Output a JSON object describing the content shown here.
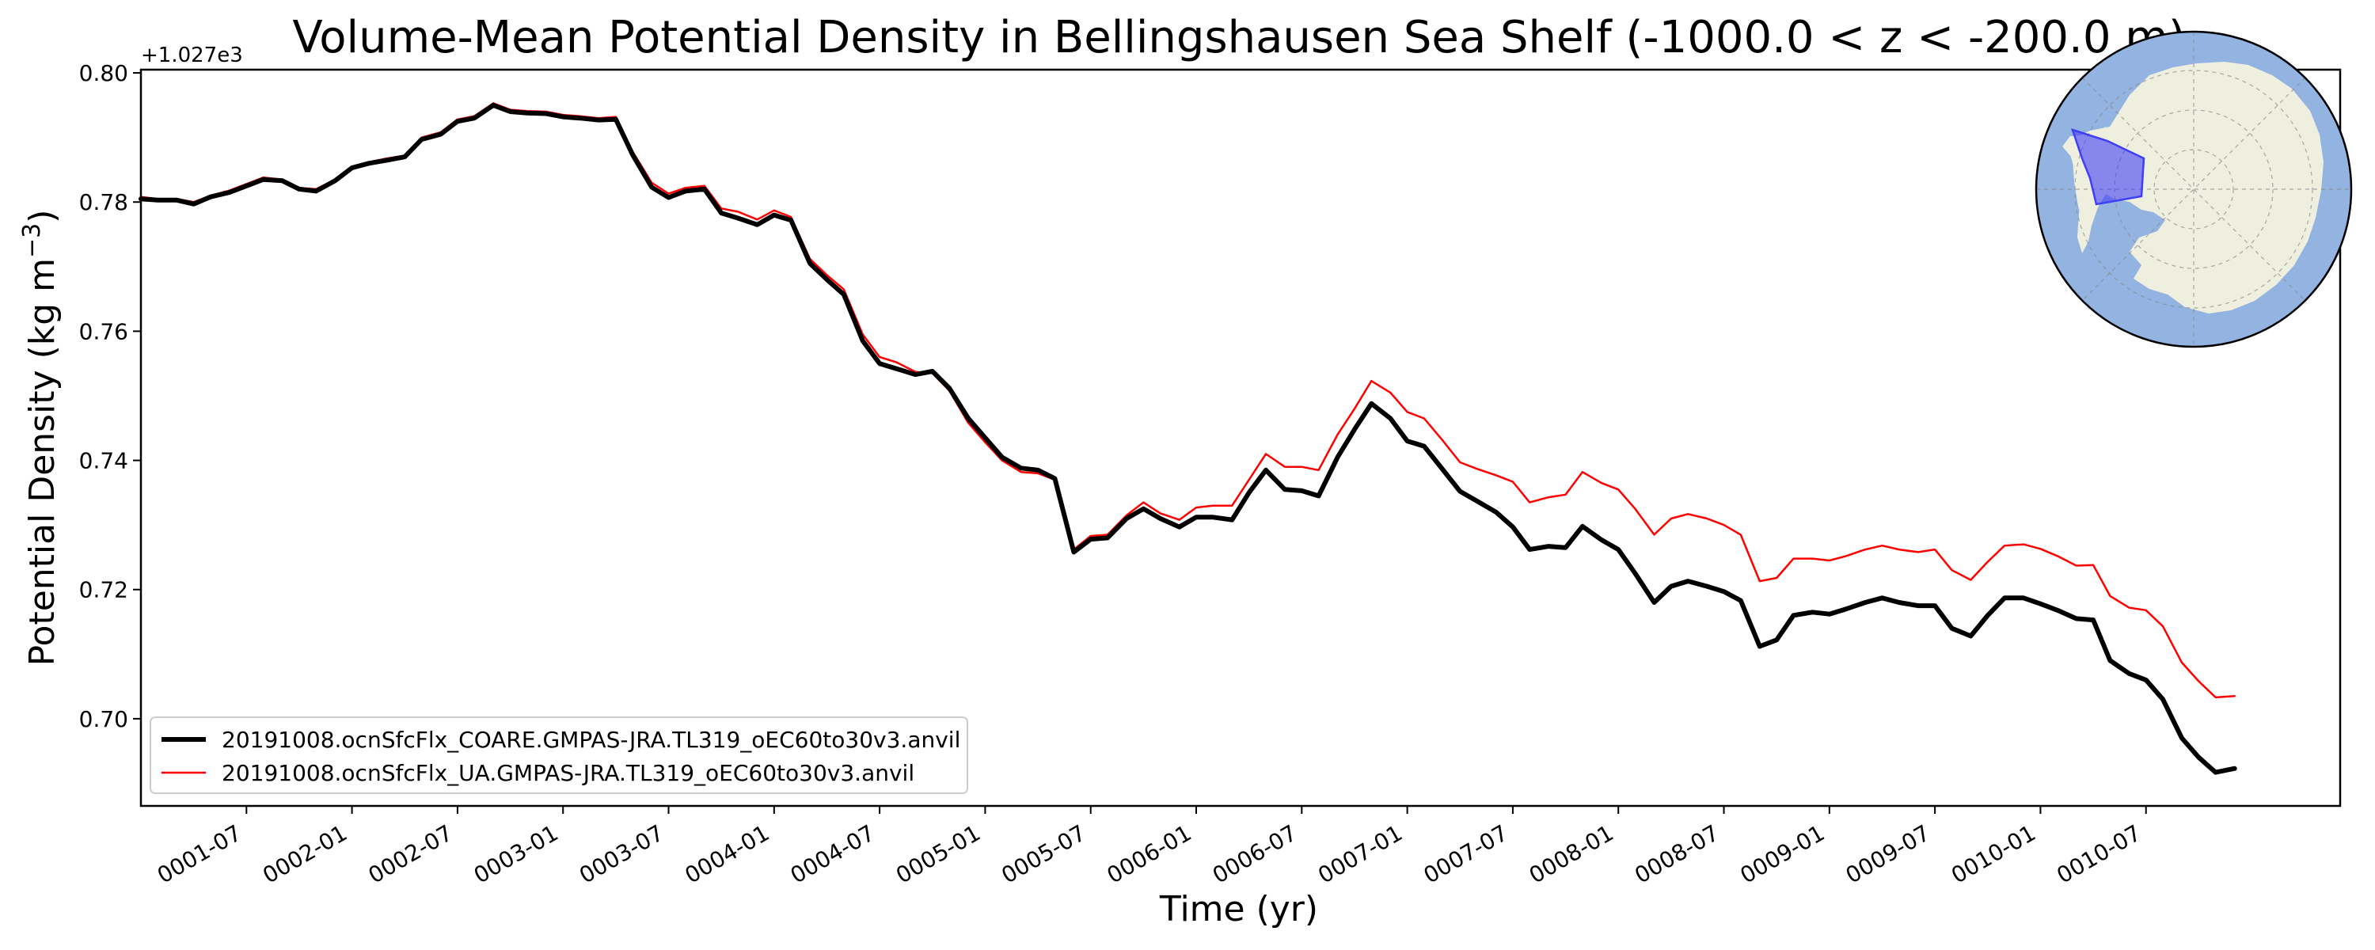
{
  "chart_data": {
    "type": "line",
    "title": "Volume-Mean Potential Density in Bellingshausen Sea Shelf (-1000.0 < z < -200.0 m)",
    "xlabel": "Time (yr)",
    "ylabel": "Potential Density (kg m",
    "ylabel_superscript": "−3",
    "ylabel_close": ")",
    "y_offset_label": "+1.027e3",
    "xlim": [
      0,
      10.42
    ],
    "ylim": [
      0.6865,
      0.8005
    ],
    "x_ticks": [
      {
        "label": "0001-07",
        "x": 0.5
      },
      {
        "label": "0002-01",
        "x": 1.0
      },
      {
        "label": "0002-07",
        "x": 1.5
      },
      {
        "label": "0003-01",
        "x": 2.0
      },
      {
        "label": "0003-07",
        "x": 2.5
      },
      {
        "label": "0004-01",
        "x": 3.0
      },
      {
        "label": "0004-07",
        "x": 3.5
      },
      {
        "label": "0005-01",
        "x": 4.0
      },
      {
        "label": "0005-07",
        "x": 4.5
      },
      {
        "label": "0006-01",
        "x": 5.0
      },
      {
        "label": "0006-07",
        "x": 5.5
      },
      {
        "label": "0007-01",
        "x": 6.0
      },
      {
        "label": "0007-07",
        "x": 6.5
      },
      {
        "label": "0008-01",
        "x": 7.0
      },
      {
        "label": "0008-07",
        "x": 7.5
      },
      {
        "label": "0009-01",
        "x": 8.0
      },
      {
        "label": "0009-07",
        "x": 8.5
      },
      {
        "label": "0010-01",
        "x": 9.0
      },
      {
        "label": "0010-07",
        "x": 9.5
      }
    ],
    "y_ticks": [
      {
        "label": "0.70",
        "y": 0.7
      },
      {
        "label": "0.72",
        "y": 0.72
      },
      {
        "label": "0.74",
        "y": 0.74
      },
      {
        "label": "0.76",
        "y": 0.76
      },
      {
        "label": "0.78",
        "y": 0.78
      },
      {
        "label": "0.80",
        "y": 0.8
      }
    ],
    "legend_position": "lower-left",
    "series": [
      {
        "name": "20191008.ocnSfcFlx_COARE.GMPAS-JRA.TL319_oEC60to30v3.anvil",
        "color": "#000000",
        "linewidth": "thick",
        "points": [
          [
            0.0,
            0.7805
          ],
          [
            0.08,
            0.7803
          ],
          [
            0.17,
            0.7803
          ],
          [
            0.25,
            0.7797
          ],
          [
            0.33,
            0.7808
          ],
          [
            0.42,
            0.7815
          ],
          [
            0.5,
            0.7825
          ],
          [
            0.58,
            0.7835
          ],
          [
            0.67,
            0.7833
          ],
          [
            0.75,
            0.782
          ],
          [
            0.83,
            0.7817
          ],
          [
            0.92,
            0.7833
          ],
          [
            1.0,
            0.7853
          ],
          [
            1.08,
            0.786
          ],
          [
            1.17,
            0.7865
          ],
          [
            1.25,
            0.787
          ],
          [
            1.33,
            0.7897
          ],
          [
            1.42,
            0.7905
          ],
          [
            1.5,
            0.7925
          ],
          [
            1.58,
            0.793
          ],
          [
            1.67,
            0.795
          ],
          [
            1.75,
            0.794
          ],
          [
            1.83,
            0.7938
          ],
          [
            1.92,
            0.7937
          ],
          [
            2.0,
            0.7932
          ],
          [
            2.08,
            0.793
          ],
          [
            2.17,
            0.7927
          ],
          [
            2.25,
            0.7928
          ],
          [
            2.33,
            0.7873
          ],
          [
            2.42,
            0.7823
          ],
          [
            2.5,
            0.7807
          ],
          [
            2.58,
            0.7817
          ],
          [
            2.67,
            0.782
          ],
          [
            2.75,
            0.7783
          ],
          [
            2.83,
            0.7775
          ],
          [
            2.92,
            0.7765
          ],
          [
            3.0,
            0.778
          ],
          [
            3.08,
            0.7772
          ],
          [
            3.17,
            0.7705
          ],
          [
            3.25,
            0.768
          ],
          [
            3.33,
            0.7657
          ],
          [
            3.42,
            0.7585
          ],
          [
            3.5,
            0.755
          ],
          [
            3.58,
            0.7542
          ],
          [
            3.67,
            0.7533
          ],
          [
            3.75,
            0.7538
          ],
          [
            3.83,
            0.7512
          ],
          [
            3.92,
            0.7465
          ],
          [
            4.0,
            0.7435
          ],
          [
            4.08,
            0.7405
          ],
          [
            4.17,
            0.7388
          ],
          [
            4.25,
            0.7385
          ],
          [
            4.33,
            0.7372
          ],
          [
            4.42,
            0.7258
          ],
          [
            4.5,
            0.7278
          ],
          [
            4.58,
            0.728
          ],
          [
            4.67,
            0.731
          ],
          [
            4.75,
            0.7325
          ],
          [
            4.83,
            0.731
          ],
          [
            4.92,
            0.7297
          ],
          [
            5.0,
            0.7312
          ],
          [
            5.08,
            0.7312
          ],
          [
            5.17,
            0.7308
          ],
          [
            5.25,
            0.735
          ],
          [
            5.33,
            0.7385
          ],
          [
            5.42,
            0.7355
          ],
          [
            5.5,
            0.7353
          ],
          [
            5.58,
            0.7345
          ],
          [
            5.67,
            0.7405
          ],
          [
            5.75,
            0.7448
          ],
          [
            5.83,
            0.7488
          ],
          [
            5.92,
            0.7465
          ],
          [
            6.0,
            0.743
          ],
          [
            6.08,
            0.7422
          ],
          [
            6.17,
            0.7385
          ],
          [
            6.25,
            0.7352
          ],
          [
            6.33,
            0.7337
          ],
          [
            6.42,
            0.732
          ],
          [
            6.5,
            0.7297
          ],
          [
            6.58,
            0.7262
          ],
          [
            6.67,
            0.7267
          ],
          [
            6.75,
            0.7265
          ],
          [
            6.83,
            0.7298
          ],
          [
            6.92,
            0.7277
          ],
          [
            7.0,
            0.7262
          ],
          [
            7.08,
            0.7225
          ],
          [
            7.17,
            0.718
          ],
          [
            7.25,
            0.7205
          ],
          [
            7.33,
            0.7213
          ],
          [
            7.42,
            0.7205
          ],
          [
            7.5,
            0.7197
          ],
          [
            7.58,
            0.7183
          ],
          [
            7.67,
            0.7112
          ],
          [
            7.75,
            0.7122
          ],
          [
            7.83,
            0.716
          ],
          [
            7.92,
            0.7165
          ],
          [
            8.0,
            0.7162
          ],
          [
            8.08,
            0.717
          ],
          [
            8.17,
            0.718
          ],
          [
            8.25,
            0.7187
          ],
          [
            8.33,
            0.718
          ],
          [
            8.42,
            0.7175
          ],
          [
            8.5,
            0.7175
          ],
          [
            8.58,
            0.714
          ],
          [
            8.67,
            0.7128
          ],
          [
            8.75,
            0.716
          ],
          [
            8.83,
            0.7187
          ],
          [
            8.92,
            0.7187
          ],
          [
            9.0,
            0.7178
          ],
          [
            9.08,
            0.7168
          ],
          [
            9.17,
            0.7155
          ],
          [
            9.25,
            0.7153
          ],
          [
            9.33,
            0.709
          ],
          [
            9.42,
            0.707
          ],
          [
            9.5,
            0.706
          ],
          [
            9.58,
            0.703
          ],
          [
            9.67,
            0.697
          ],
          [
            9.75,
            0.694
          ],
          [
            9.83,
            0.6917
          ],
          [
            9.92,
            0.6923
          ]
        ]
      },
      {
        "name": "20191008.ocnSfcFlx_UA.GMPAS-JRA.TL319_oEC60to30v3.anvil",
        "color": "#ff0000",
        "linewidth": "thin",
        "points": [
          [
            0.0,
            0.7808
          ],
          [
            0.08,
            0.7805
          ],
          [
            0.17,
            0.7805
          ],
          [
            0.25,
            0.78
          ],
          [
            0.33,
            0.781
          ],
          [
            0.42,
            0.7818
          ],
          [
            0.5,
            0.7828
          ],
          [
            0.58,
            0.7838
          ],
          [
            0.67,
            0.7835
          ],
          [
            0.75,
            0.7822
          ],
          [
            0.83,
            0.782
          ],
          [
            0.92,
            0.7835
          ],
          [
            1.0,
            0.7855
          ],
          [
            1.08,
            0.7862
          ],
          [
            1.17,
            0.7868
          ],
          [
            1.25,
            0.7872
          ],
          [
            1.33,
            0.79
          ],
          [
            1.42,
            0.7908
          ],
          [
            1.5,
            0.7928
          ],
          [
            1.58,
            0.7933
          ],
          [
            1.67,
            0.7953
          ],
          [
            1.75,
            0.7943
          ],
          [
            1.83,
            0.7941
          ],
          [
            1.92,
            0.794
          ],
          [
            2.0,
            0.7935
          ],
          [
            2.08,
            0.7933
          ],
          [
            2.17,
            0.793
          ],
          [
            2.25,
            0.7932
          ],
          [
            2.33,
            0.7878
          ],
          [
            2.42,
            0.783
          ],
          [
            2.5,
            0.7813
          ],
          [
            2.58,
            0.7822
          ],
          [
            2.67,
            0.7825
          ],
          [
            2.75,
            0.779
          ],
          [
            2.83,
            0.7785
          ],
          [
            2.92,
            0.7773
          ],
          [
            3.0,
            0.7787
          ],
          [
            3.08,
            0.7777
          ],
          [
            3.17,
            0.7712
          ],
          [
            3.25,
            0.7687
          ],
          [
            3.33,
            0.7665
          ],
          [
            3.42,
            0.7595
          ],
          [
            3.5,
            0.756
          ],
          [
            3.58,
            0.7552
          ],
          [
            3.67,
            0.7537
          ],
          [
            3.75,
            0.7535
          ],
          [
            3.83,
            0.7508
          ],
          [
            3.92,
            0.7458
          ],
          [
            4.0,
            0.7428
          ],
          [
            4.08,
            0.74
          ],
          [
            4.17,
            0.7382
          ],
          [
            4.25,
            0.738
          ],
          [
            4.33,
            0.737
          ],
          [
            4.42,
            0.7262
          ],
          [
            4.5,
            0.7283
          ],
          [
            4.58,
            0.7285
          ],
          [
            4.67,
            0.7315
          ],
          [
            4.75,
            0.7335
          ],
          [
            4.83,
            0.7318
          ],
          [
            4.92,
            0.7308
          ],
          [
            5.0,
            0.7327
          ],
          [
            5.08,
            0.733
          ],
          [
            5.17,
            0.733
          ],
          [
            5.25,
            0.737
          ],
          [
            5.33,
            0.741
          ],
          [
            5.42,
            0.739
          ],
          [
            5.5,
            0.739
          ],
          [
            5.58,
            0.7385
          ],
          [
            5.67,
            0.744
          ],
          [
            5.75,
            0.748
          ],
          [
            5.83,
            0.7523
          ],
          [
            5.92,
            0.7505
          ],
          [
            6.0,
            0.7475
          ],
          [
            6.08,
            0.7465
          ],
          [
            6.17,
            0.743
          ],
          [
            6.25,
            0.7397
          ],
          [
            6.33,
            0.7387
          ],
          [
            6.42,
            0.7377
          ],
          [
            6.5,
            0.7367
          ],
          [
            6.58,
            0.7335
          ],
          [
            6.67,
            0.7343
          ],
          [
            6.75,
            0.7347
          ],
          [
            6.83,
            0.7382
          ],
          [
            6.92,
            0.7365
          ],
          [
            7.0,
            0.7355
          ],
          [
            7.08,
            0.7325
          ],
          [
            7.17,
            0.7285
          ],
          [
            7.25,
            0.731
          ],
          [
            7.33,
            0.7317
          ],
          [
            7.42,
            0.731
          ],
          [
            7.5,
            0.73
          ],
          [
            7.58,
            0.7285
          ],
          [
            7.67,
            0.7213
          ],
          [
            7.75,
            0.7218
          ],
          [
            7.83,
            0.7248
          ],
          [
            7.92,
            0.7248
          ],
          [
            8.0,
            0.7245
          ],
          [
            8.08,
            0.7252
          ],
          [
            8.17,
            0.7262
          ],
          [
            8.25,
            0.7268
          ],
          [
            8.33,
            0.7262
          ],
          [
            8.42,
            0.7258
          ],
          [
            8.5,
            0.7262
          ],
          [
            8.58,
            0.723
          ],
          [
            8.67,
            0.7215
          ],
          [
            8.75,
            0.7243
          ],
          [
            8.83,
            0.7268
          ],
          [
            8.92,
            0.727
          ],
          [
            9.0,
            0.7263
          ],
          [
            9.08,
            0.7252
          ],
          [
            9.17,
            0.7237
          ],
          [
            9.25,
            0.7238
          ],
          [
            9.33,
            0.719
          ],
          [
            9.42,
            0.7172
          ],
          [
            9.5,
            0.7168
          ],
          [
            9.58,
            0.7143
          ],
          [
            9.67,
            0.7087
          ],
          [
            9.75,
            0.7058
          ],
          [
            9.83,
            0.7033
          ],
          [
            9.92,
            0.7035
          ]
        ]
      }
    ]
  },
  "map_inset": {
    "ocean_color": "#93b3e0",
    "land_color": "#efefe0",
    "region_color": "#3f3ff5"
  }
}
